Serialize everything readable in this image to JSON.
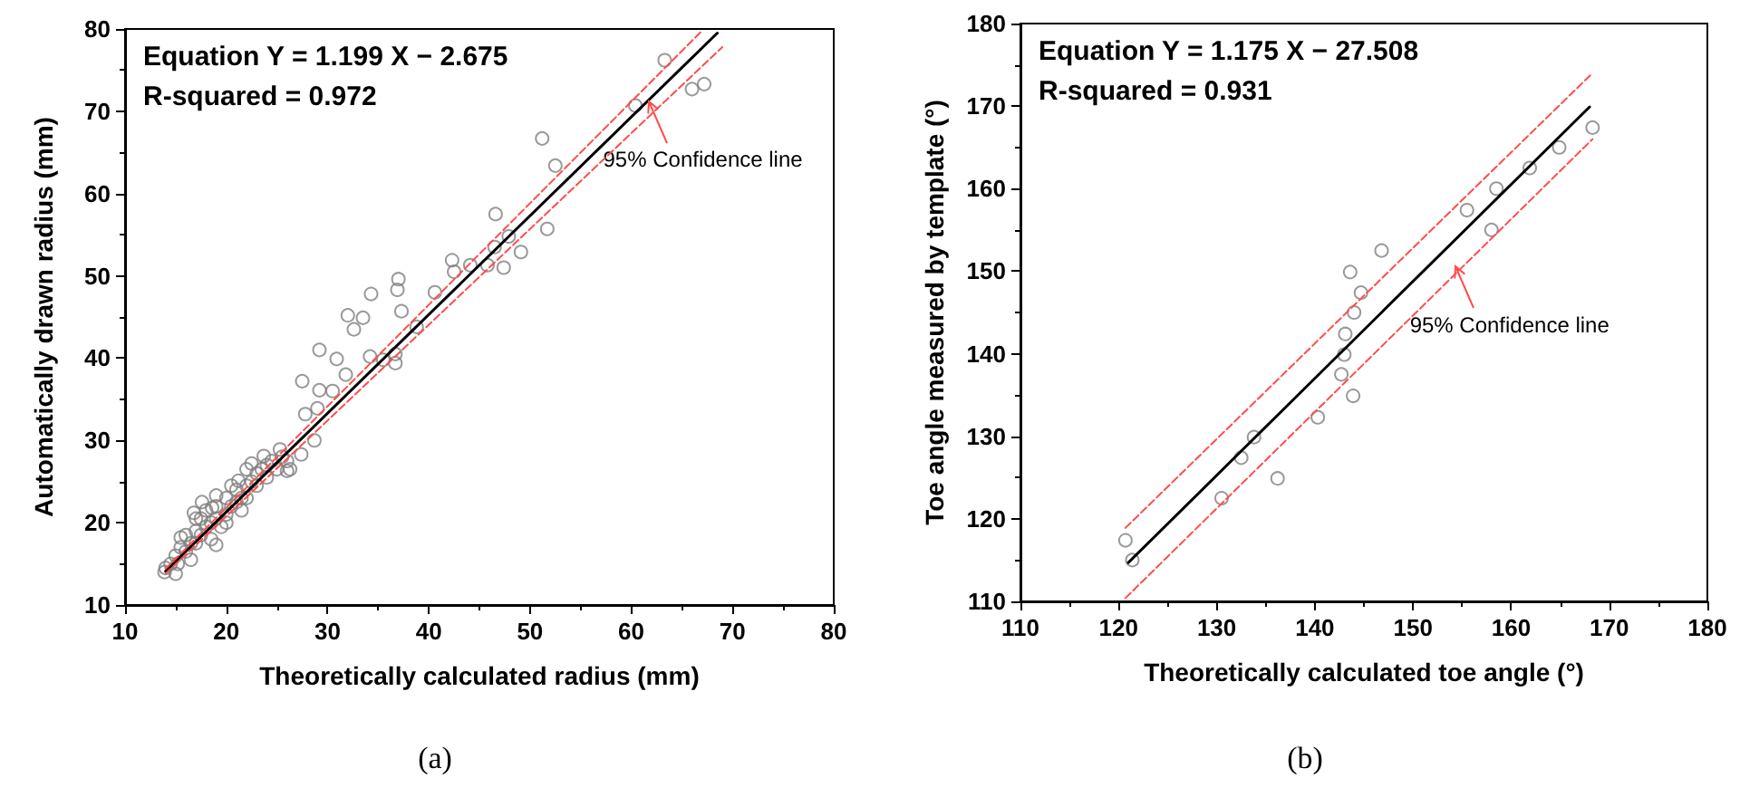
{
  "chart_data": [
    {
      "type": "scatter",
      "title": "(a)",
      "xlabel": "Theoretically calculated radius (mm)",
      "ylabel": "Automatically drawn radius (mm)",
      "xlim": [
        10,
        80
      ],
      "ylim": [
        10,
        80
      ],
      "xticks": [
        10,
        20,
        30,
        40,
        50,
        60,
        70,
        80
      ],
      "yticks": [
        10,
        20,
        30,
        40,
        50,
        60,
        70,
        80
      ],
      "grid": false,
      "annotations": [
        "Equation Y = 1.199 X − 2.675",
        "R-squared = 0.972",
        {
          "text": "95% Confidence line",
          "x": 61.7,
          "y": 71.2
        }
      ],
      "series": [
        {
          "marker": "circle",
          "color": "#808080",
          "x": [
            63.3,
            66.0,
            67.2,
            60.4,
            51.2,
            52.5,
            46.6,
            51.7,
            47.9,
            46.5,
            49.1,
            45.8,
            47.4,
            42.3,
            42.5,
            44.1,
            37.0,
            36.9,
            34.3,
            40.6,
            37.3,
            32.0,
            33.5,
            32.6,
            38.8,
            29.2,
            30.9,
            34.2,
            35.5,
            36.7,
            36.7,
            31.8,
            27.5,
            29.2,
            30.5,
            29.0,
            27.8,
            28.7,
            27.4,
            25.3,
            26.3,
            23.7,
            22.5,
            21.2,
            19.0,
            13.9,
            14,
            14.5,
            15,
            15.2,
            15.5,
            16,
            16,
            16.5,
            17,
            17,
            17.5,
            17.5,
            18,
            18,
            18.5,
            19,
            19,
            19.5,
            20,
            20,
            20.5,
            21,
            21,
            21.5,
            22,
            22,
            22.5,
            23,
            23,
            23.5,
            24,
            24,
            24.5,
            25,
            25.5,
            15,
            16.5,
            18.5,
            20,
            21.5,
            17,
            15.5,
            19,
            22,
            20.5,
            26,
            26,
            16.8,
            17.6,
            18.6
          ],
          "values": [
            76.2,
            72.7,
            73.3,
            70.7,
            66.7,
            63.4,
            57.5,
            55.7,
            54.8,
            53.5,
            52.9,
            51.3,
            51.0,
            51.9,
            50.5,
            51.3,
            49.6,
            48.3,
            47.8,
            48.0,
            45.7,
            45.2,
            44.9,
            43.5,
            43.8,
            41.0,
            39.9,
            40.2,
            39.8,
            40.5,
            39.4,
            38.0,
            37.2,
            36.1,
            36.0,
            33.9,
            33.2,
            30.0,
            28.3,
            28.9,
            26.5,
            28.1,
            27.2,
            25.1,
            17.3,
            14.0,
            14.5,
            15,
            16,
            15.0,
            17,
            16.5,
            18.5,
            17.5,
            19,
            17.5,
            20.5,
            18.5,
            19.5,
            21.5,
            20,
            20.5,
            22,
            19.5,
            21,
            23,
            22,
            22.5,
            24,
            23,
            24.5,
            23,
            25,
            26,
            24.5,
            26.5,
            25.5,
            27,
            27.5,
            26.5,
            28,
            13.8,
            15.5,
            18,
            20,
            21.5,
            20.5,
            18.2,
            23.3,
            26.5,
            24.5,
            27.5,
            26.3,
            21.2,
            22.5,
            21.8
          ]
        },
        {
          "type": "line",
          "marker": "none",
          "line_style": "solid",
          "color": "#000000",
          "x": [
            14,
            68.5
          ],
          "values": [
            14.1,
            79.5
          ]
        },
        {
          "type": "line",
          "marker": "none",
          "line_style": "dashed",
          "color": "#ff4d4d",
          "x": [
            14,
            67
          ],
          "values": [
            14.4,
            79.8
          ]
        },
        {
          "type": "line",
          "marker": "none",
          "line_style": "dashed",
          "color": "#ff4d4d",
          "x": [
            14,
            69
          ],
          "values": [
            13.8,
            77.8
          ]
        }
      ]
    },
    {
      "type": "scatter",
      "title": "(b)",
      "xlabel": "Theoretically calculated toe angle (°)",
      "ylabel": "Toe angle measured by template (°)",
      "xlim": [
        110,
        180
      ],
      "ylim": [
        110,
        180
      ],
      "xticks": [
        110,
        120,
        130,
        140,
        150,
        160,
        170,
        180
      ],
      "yticks": [
        110,
        120,
        130,
        140,
        150,
        160,
        170,
        180
      ],
      "grid": false,
      "annotations": [
        "Equation Y = 1.175 X − 27.508",
        "R-squared = 0.931",
        {
          "text": "95% Confidence line",
          "x": 154.3,
          "y": 150.5
        }
      ],
      "series": [
        {
          "marker": "circle",
          "color": "#808080",
          "x": [
            120.7,
            121.4,
            130.5,
            132.5,
            133.8,
            136.2,
            140.3,
            142.7,
            143.0,
            143.1,
            143.9,
            144.0,
            144.7,
            143.6,
            146.8,
            155.5,
            158.0,
            158.5,
            161.9,
            164.9,
            168.3
          ],
          "values": [
            117.4,
            115.0,
            122.5,
            127.4,
            129.9,
            124.9,
            132.3,
            137.5,
            139.9,
            142.4,
            134.9,
            145.0,
            147.4,
            149.9,
            152.5,
            157.4,
            155.0,
            160.0,
            162.5,
            165.0,
            167.4
          ]
        },
        {
          "type": "line",
          "marker": "none",
          "line_style": "solid",
          "color": "#000000",
          "x": [
            121,
            168
          ],
          "values": [
            114.7,
            169.9
          ]
        },
        {
          "type": "line",
          "marker": "none",
          "line_style": "dashed",
          "color": "#ff4d4d",
          "x": [
            120.7,
            168.3
          ],
          "values": [
            118.9,
            174.0
          ]
        },
        {
          "type": "line",
          "marker": "none",
          "line_style": "dashed",
          "color": "#ff4d4d",
          "x": [
            120.7,
            168.3
          ],
          "values": [
            110.4,
            166.0
          ]
        }
      ]
    }
  ]
}
